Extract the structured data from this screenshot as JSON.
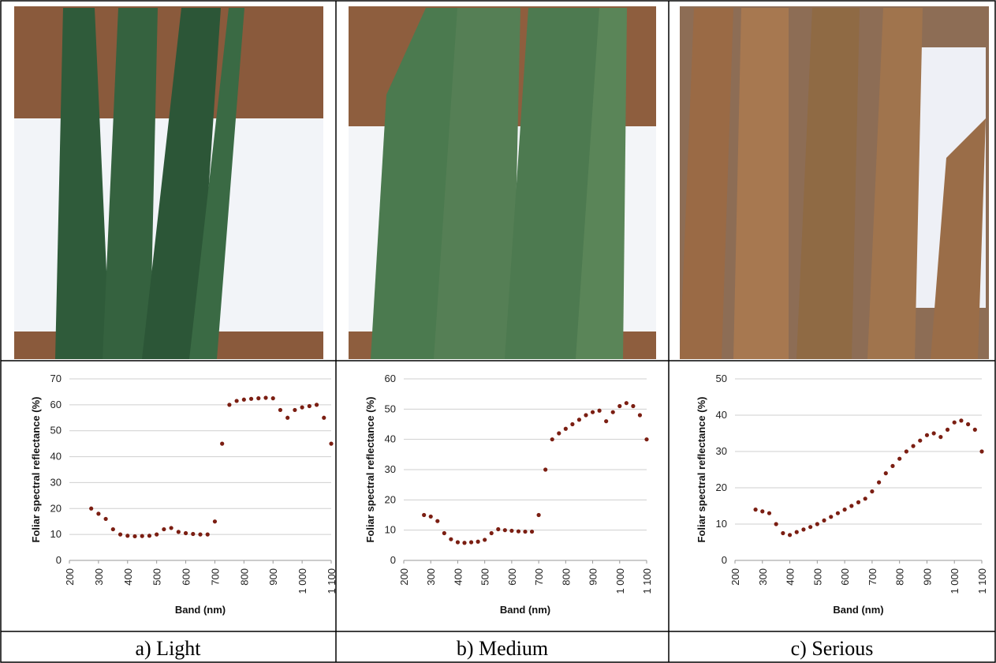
{
  "chart_data": [
    {
      "type": "scatter",
      "caption": "a) Light",
      "xlabel": "Band (nm)",
      "ylabel": "Foliar spectral reflectance (%)",
      "color": "#7b1e12",
      "grid": true,
      "xlim": [
        200,
        1100
      ],
      "xticks": [
        200,
        300,
        400,
        500,
        600,
        700,
        800,
        900,
        {
          "value": 1000,
          "label": "1 000"
        },
        {
          "value": 1100,
          "label": "1 100"
        }
      ],
      "ylim": [
        0,
        70
      ],
      "yticks": [
        0,
        10,
        20,
        30,
        40,
        50,
        60,
        70
      ],
      "x": [
        275,
        300,
        325,
        350,
        375,
        400,
        425,
        450,
        475,
        500,
        525,
        550,
        575,
        600,
        625,
        650,
        675,
        700,
        725,
        750,
        775,
        800,
        825,
        850,
        875,
        900,
        925,
        950,
        975,
        1000,
        1025,
        1050,
        1075,
        1100
      ],
      "values": [
        20,
        18,
        16,
        12,
        10,
        9.5,
        9.3,
        9.4,
        9.5,
        10,
        12,
        12.5,
        11,
        10.5,
        10.2,
        10,
        10,
        15,
        45,
        60,
        61.5,
        62,
        62.3,
        62.5,
        62.7,
        62.5,
        58,
        55,
        58,
        59,
        59.5,
        60,
        55,
        45
      ]
    },
    {
      "type": "scatter",
      "caption": "b) Medium",
      "xlabel": "Band (nm)",
      "ylabel": "Foliar spectral reflectance (%)",
      "color": "#7b1e12",
      "grid": true,
      "xlim": [
        200,
        1100
      ],
      "xticks": [
        200,
        300,
        400,
        500,
        600,
        700,
        800,
        900,
        {
          "value": 1000,
          "label": "1 000"
        },
        {
          "value": 1100,
          "label": "1 100"
        }
      ],
      "ylim": [
        0,
        60
      ],
      "yticks": [
        0,
        10,
        20,
        30,
        40,
        50,
        60
      ],
      "x": [
        275,
        300,
        325,
        350,
        375,
        400,
        425,
        450,
        475,
        500,
        525,
        550,
        575,
        600,
        625,
        650,
        675,
        700,
        725,
        750,
        775,
        800,
        825,
        850,
        875,
        900,
        925,
        950,
        975,
        1000,
        1025,
        1050,
        1075,
        1100
      ],
      "values": [
        15,
        14.5,
        13,
        9,
        7,
        6,
        5.8,
        6,
        6.2,
        6.8,
        9,
        10.3,
        10,
        9.8,
        9.6,
        9.5,
        9.5,
        15,
        30,
        40,
        42,
        43.5,
        45,
        46.5,
        48,
        49,
        49.5,
        46,
        49,
        51,
        52,
        51,
        48,
        40
      ]
    },
    {
      "type": "scatter",
      "caption": "c) Serious",
      "xlabel": "Band (nm)",
      "ylabel": "Foliar spectral reflectance (%)",
      "color": "#7b1e12",
      "grid": true,
      "xlim": [
        200,
        1100
      ],
      "xticks": [
        200,
        300,
        400,
        500,
        600,
        700,
        800,
        900,
        {
          "value": 1000,
          "label": "1 000"
        },
        {
          "value": 1100,
          "label": "1 100"
        }
      ],
      "ylim": [
        0,
        50
      ],
      "yticks": [
        0,
        10,
        20,
        30,
        40,
        50
      ],
      "x": [
        275,
        300,
        325,
        350,
        375,
        400,
        425,
        450,
        475,
        500,
        525,
        550,
        575,
        600,
        625,
        650,
        675,
        700,
        725,
        750,
        775,
        800,
        825,
        850,
        875,
        900,
        925,
        950,
        975,
        1000,
        1025,
        1050,
        1075,
        1100
      ],
      "values": [
        14,
        13.5,
        13,
        10,
        7.5,
        7,
        7.8,
        8.5,
        9.2,
        10,
        11,
        12,
        13,
        14,
        15,
        16,
        17,
        19,
        21.5,
        24,
        26,
        28,
        30,
        31.5,
        33,
        34.5,
        35,
        34,
        36,
        38,
        38.5,
        37.5,
        36,
        30
      ]
    }
  ]
}
